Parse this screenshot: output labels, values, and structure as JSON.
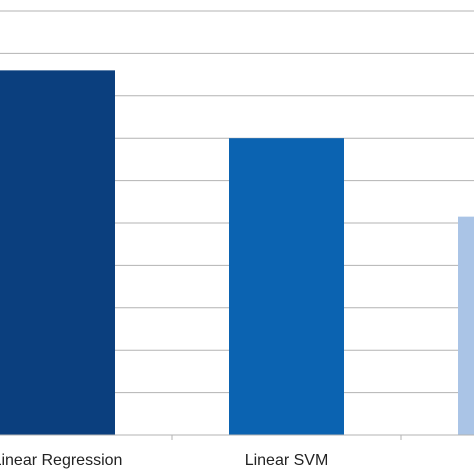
{
  "chart_data": {
    "type": "bar",
    "categories": [
      "Linear Regression",
      "Linear SVM",
      null
    ],
    "values": [
      8.6,
      7.0,
      5.15
    ],
    "colors": [
      "#0b3f7e",
      "#0b63b1",
      "#aac4e6"
    ],
    "ylim": [
      0,
      10
    ],
    "yticks": [
      0,
      1,
      2,
      3,
      4,
      5,
      6,
      7,
      8,
      9,
      10
    ],
    "grid": true
  }
}
